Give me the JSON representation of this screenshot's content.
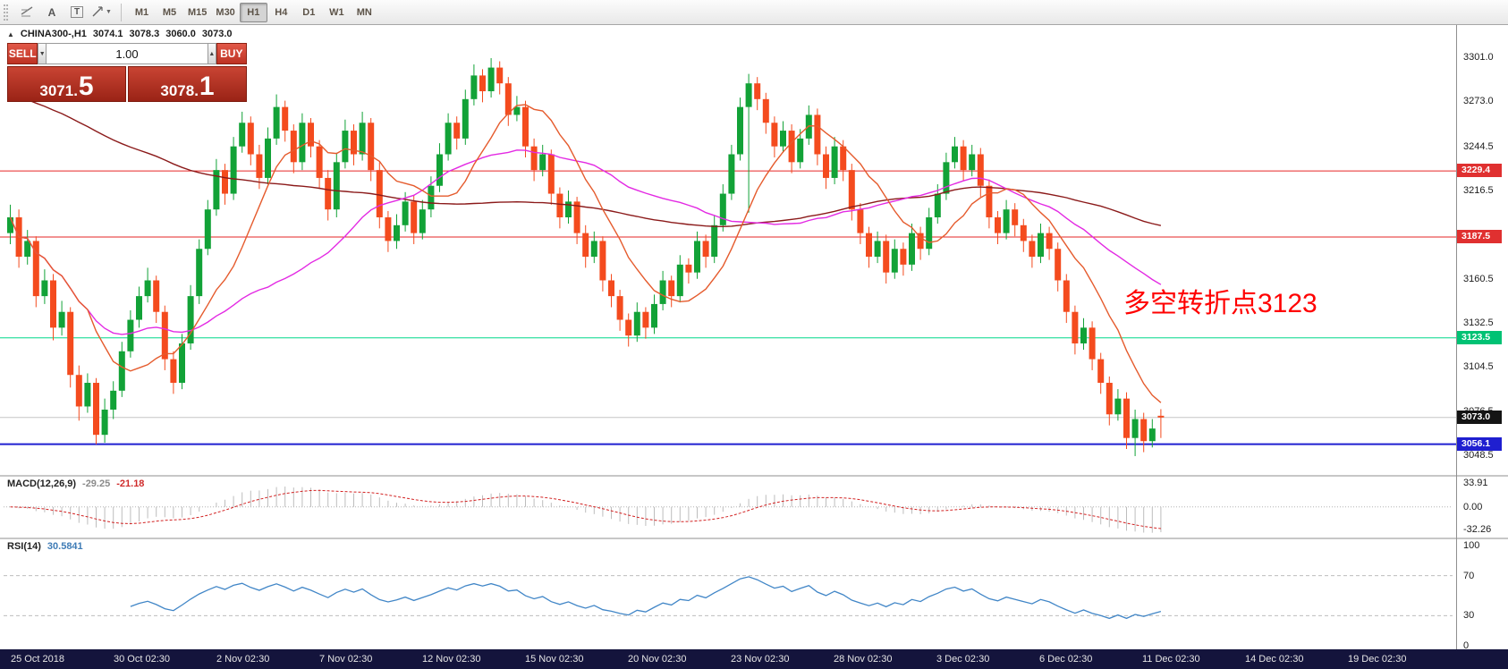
{
  "icons": {
    "collapse": "▲",
    "dropdown": "▼",
    "spin_up": "▲",
    "spin_down": "▼"
  },
  "toolbar": {
    "a_label": "A",
    "t_label": "T",
    "timeframes": [
      {
        "label": "M1",
        "active": false
      },
      {
        "label": "M5",
        "active": false
      },
      {
        "label": "M15",
        "active": false
      },
      {
        "label": "M30",
        "active": false
      },
      {
        "label": "H1",
        "active": true
      },
      {
        "label": "H4",
        "active": false
      },
      {
        "label": "D1",
        "active": false
      },
      {
        "label": "W1",
        "active": false
      },
      {
        "label": "MN",
        "active": false
      }
    ]
  },
  "symbol_info": {
    "symbol": "CHINA300-,H1",
    "open": "3074.1",
    "high": "3078.3",
    "low": "3060.0",
    "close": "3073.0"
  },
  "one_click": {
    "sell_label": "SELL",
    "buy_label": "BUY",
    "volume": "1.00",
    "sell_price": {
      "main": "3071.",
      "big": "5"
    },
    "buy_price": {
      "main": "3078.",
      "big": "1"
    }
  },
  "annotation": {
    "text": "多空转折点3123",
    "color": "#ff0000"
  },
  "macd_panel": {
    "title": "MACD(12,26,9)",
    "value_main": "-29.25",
    "value_signal": "-21.18",
    "axis_labels": [
      "33.91",
      "0.00",
      "-32.26"
    ],
    "hist_color": "#bdbdbd",
    "signal_color": "#d22222"
  },
  "rsi_panel": {
    "title": "RSI(14)",
    "value": "30.5841",
    "axis_labels": [
      "100",
      "70",
      "30",
      "0"
    ],
    "levels": [
      70,
      30
    ],
    "line_color": "#4186c7"
  },
  "chart_data": {
    "type": "candlestick",
    "title": "CHINA300-,H1",
    "symbol": "CHINA300-",
    "timeframe": "H1",
    "up_color": "#12a237",
    "down_color": "#f44b1e",
    "y_axis_ticks": [
      "3301.0",
      "3273.0",
      "3244.5",
      "3216.5",
      "3187.5",
      "3160.5",
      "3132.5",
      "3104.5",
      "3076.5",
      "3048.5"
    ],
    "y_range": [
      3036,
      3322
    ],
    "x_axis_labels": [
      "25 Oct 2018",
      "30 Oct 02:30",
      "2 Nov 02:30",
      "7 Nov 02:30",
      "12 Nov 02:30",
      "15 Nov 02:30",
      "20 Nov 02:30",
      "23 Nov 02:30",
      "28 Nov 02:30",
      "3 Dec 02:30",
      "6 Dec 02:30",
      "11 Dec 02:30",
      "14 Dec 02:30",
      "19 Dec 02:30"
    ],
    "levels": [
      {
        "price": 3229.4,
        "label": "3229.4",
        "color": "#e62626",
        "badge": "#e03030",
        "width": 1
      },
      {
        "price": 3187.5,
        "label": "3187.5",
        "color": "#e62626",
        "badge": "#e03030",
        "width": 1
      },
      {
        "price": 3123.5,
        "label": "3123.5",
        "color": "#00d98a",
        "badge": "#00c274",
        "width": 1
      },
      {
        "price": 3056.1,
        "label": "3056.1",
        "color": "#1f1fd0",
        "badge": "#1f1fd0",
        "width": 2
      }
    ],
    "current_price": {
      "price": 3073.0,
      "label": "3073.0",
      "badge": "#141414",
      "line": "#c6c6c6"
    },
    "ma": {
      "fast": {
        "period": 10,
        "color": "#e55b2d"
      },
      "medium": {
        "period": 30,
        "color": "#e32ae3"
      },
      "slow": {
        "period": 90,
        "color": "#8b1a1a",
        "seed_from": 3350,
        "seed_to": 3210
      }
    },
    "ohlc": [
      [
        3190,
        3208,
        3183,
        3200
      ],
      [
        3200,
        3205,
        3168,
        3175
      ],
      [
        3175,
        3192,
        3170,
        3185
      ],
      [
        3185,
        3188,
        3143,
        3150
      ],
      [
        3150,
        3167,
        3145,
        3160
      ],
      [
        3160,
        3164,
        3122,
        3130
      ],
      [
        3130,
        3147,
        3125,
        3140
      ],
      [
        3140,
        3143,
        3092,
        3100
      ],
      [
        3100,
        3106,
        3071,
        3080
      ],
      [
        3080,
        3101,
        3076,
        3095
      ],
      [
        3095,
        3098,
        3056,
        3062
      ],
      [
        3062,
        3085,
        3057,
        3078
      ],
      [
        3078,
        3096,
        3072,
        3090
      ],
      [
        3090,
        3121,
        3086,
        3115
      ],
      [
        3115,
        3141,
        3111,
        3135
      ],
      [
        3135,
        3156,
        3130,
        3150
      ],
      [
        3150,
        3168,
        3146,
        3160
      ],
      [
        3160,
        3163,
        3133,
        3140
      ],
      [
        3140,
        3144,
        3103,
        3110
      ],
      [
        3110,
        3115,
        3088,
        3095
      ],
      [
        3095,
        3126,
        3091,
        3120
      ],
      [
        3120,
        3157,
        3116,
        3150
      ],
      [
        3150,
        3186,
        3145,
        3180
      ],
      [
        3180,
        3211,
        3176,
        3205
      ],
      [
        3205,
        3237,
        3201,
        3230
      ],
      [
        3230,
        3234,
        3208,
        3215
      ],
      [
        3215,
        3251,
        3211,
        3245
      ],
      [
        3245,
        3267,
        3241,
        3260
      ],
      [
        3260,
        3264,
        3233,
        3240
      ],
      [
        3240,
        3246,
        3218,
        3225
      ],
      [
        3225,
        3257,
        3221,
        3250
      ],
      [
        3250,
        3278,
        3246,
        3270
      ],
      [
        3270,
        3274,
        3248,
        3255
      ],
      [
        3255,
        3259,
        3228,
        3235
      ],
      [
        3235,
        3266,
        3230,
        3260
      ],
      [
        3260,
        3263,
        3238,
        3245
      ],
      [
        3245,
        3249,
        3218,
        3225
      ],
      [
        3225,
        3230,
        3198,
        3205
      ],
      [
        3205,
        3241,
        3200,
        3235
      ],
      [
        3235,
        3262,
        3231,
        3255
      ],
      [
        3255,
        3259,
        3233,
        3240
      ],
      [
        3240,
        3267,
        3236,
        3260
      ],
      [
        3260,
        3263,
        3223,
        3230
      ],
      [
        3230,
        3235,
        3193,
        3200
      ],
      [
        3200,
        3204,
        3178,
        3185
      ],
      [
        3185,
        3202,
        3180,
        3195
      ],
      [
        3195,
        3216,
        3191,
        3210
      ],
      [
        3210,
        3214,
        3183,
        3190
      ],
      [
        3190,
        3211,
        3186,
        3205
      ],
      [
        3205,
        3226,
        3200,
        3220
      ],
      [
        3220,
        3247,
        3216,
        3240
      ],
      [
        3240,
        3266,
        3236,
        3260
      ],
      [
        3260,
        3264,
        3243,
        3250
      ],
      [
        3250,
        3281,
        3246,
        3275
      ],
      [
        3275,
        3297,
        3271,
        3290
      ],
      [
        3290,
        3294,
        3273,
        3280
      ],
      [
        3280,
        3301,
        3276,
        3295
      ],
      [
        3295,
        3299,
        3278,
        3285
      ],
      [
        3285,
        3289,
        3258,
        3265
      ],
      [
        3265,
        3277,
        3261,
        3270
      ],
      [
        3270,
        3274,
        3238,
        3245
      ],
      [
        3245,
        3250,
        3223,
        3230
      ],
      [
        3230,
        3246,
        3226,
        3240
      ],
      [
        3240,
        3243,
        3208,
        3215
      ],
      [
        3215,
        3219,
        3193,
        3200
      ],
      [
        3200,
        3217,
        3196,
        3210
      ],
      [
        3210,
        3213,
        3183,
        3190
      ],
      [
        3190,
        3195,
        3168,
        3175
      ],
      [
        3175,
        3191,
        3171,
        3185
      ],
      [
        3185,
        3188,
        3153,
        3160
      ],
      [
        3160,
        3164,
        3143,
        3150
      ],
      [
        3150,
        3154,
        3128,
        3135
      ],
      [
        3135,
        3139,
        3118,
        3125
      ],
      [
        3125,
        3146,
        3121,
        3140
      ],
      [
        3140,
        3143,
        3123,
        3130
      ],
      [
        3130,
        3151,
        3126,
        3145
      ],
      [
        3145,
        3166,
        3141,
        3160
      ],
      [
        3160,
        3163,
        3143,
        3150
      ],
      [
        3150,
        3176,
        3146,
        3170
      ],
      [
        3170,
        3174,
        3158,
        3165
      ],
      [
        3165,
        3191,
        3161,
        3185
      ],
      [
        3185,
        3189,
        3168,
        3175
      ],
      [
        3175,
        3201,
        3171,
        3195
      ],
      [
        3195,
        3221,
        3191,
        3215
      ],
      [
        3215,
        3246,
        3211,
        3240
      ],
      [
        3240,
        3276,
        3236,
        3270
      ],
      [
        3270,
        3291,
        3203,
        3285
      ],
      [
        3285,
        3289,
        3268,
        3275
      ],
      [
        3275,
        3279,
        3253,
        3260
      ],
      [
        3260,
        3264,
        3238,
        3245
      ],
      [
        3245,
        3261,
        3241,
        3255
      ],
      [
        3255,
        3259,
        3228,
        3235
      ],
      [
        3235,
        3256,
        3231,
        3250
      ],
      [
        3250,
        3271,
        3246,
        3265
      ],
      [
        3265,
        3269,
        3233,
        3240
      ],
      [
        3240,
        3245,
        3218,
        3225
      ],
      [
        3225,
        3251,
        3221,
        3245
      ],
      [
        3245,
        3249,
        3223,
        3230
      ],
      [
        3230,
        3234,
        3198,
        3205
      ],
      [
        3205,
        3209,
        3183,
        3190
      ],
      [
        3190,
        3194,
        3168,
        3175
      ],
      [
        3175,
        3191,
        3171,
        3185
      ],
      [
        3185,
        3189,
        3158,
        3165
      ],
      [
        3165,
        3186,
        3161,
        3180
      ],
      [
        3180,
        3184,
        3163,
        3170
      ],
      [
        3170,
        3196,
        3166,
        3190
      ],
      [
        3190,
        3194,
        3173,
        3180
      ],
      [
        3180,
        3206,
        3176,
        3200
      ],
      [
        3200,
        3221,
        3196,
        3215
      ],
      [
        3215,
        3241,
        3211,
        3235
      ],
      [
        3235,
        3251,
        3231,
        3245
      ],
      [
        3245,
        3249,
        3223,
        3230
      ],
      [
        3230,
        3246,
        3226,
        3240
      ],
      [
        3240,
        3244,
        3213,
        3220
      ],
      [
        3220,
        3224,
        3193,
        3200
      ],
      [
        3200,
        3204,
        3183,
        3190
      ],
      [
        3190,
        3211,
        3186,
        3205
      ],
      [
        3205,
        3209,
        3188,
        3195
      ],
      [
        3195,
        3199,
        3178,
        3185
      ],
      [
        3185,
        3189,
        3168,
        3175
      ],
      [
        3175,
        3196,
        3171,
        3190
      ],
      [
        3190,
        3194,
        3173,
        3180
      ],
      [
        3180,
        3184,
        3153,
        3160
      ],
      [
        3160,
        3164,
        3133,
        3140
      ],
      [
        3140,
        3144,
        3113,
        3120
      ],
      [
        3120,
        3136,
        3116,
        3130
      ],
      [
        3130,
        3134,
        3103,
        3110
      ],
      [
        3110,
        3114,
        3088,
        3095
      ],
      [
        3095,
        3099,
        3068,
        3075
      ],
      [
        3075,
        3091,
        3071,
        3085
      ],
      [
        3085,
        3089,
        3053,
        3060
      ],
      [
        3060,
        3078,
        3048.5,
        3072
      ],
      [
        3072,
        3076,
        3051,
        3058
      ],
      [
        3058,
        3072,
        3054,
        3066
      ],
      [
        3074.1,
        3078.3,
        3060.0,
        3073.0
      ]
    ]
  }
}
